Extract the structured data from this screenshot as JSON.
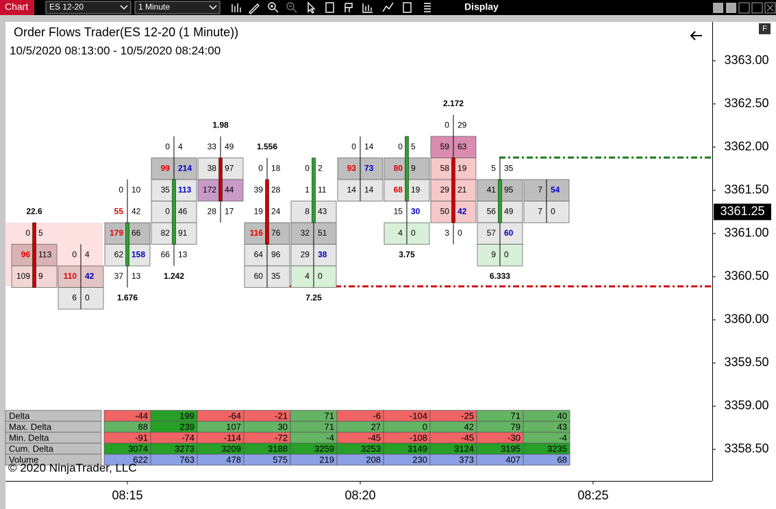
{
  "toolbar": {
    "tab": "Chart",
    "instrument": "ES 12-20",
    "interval": "1 Minute",
    "menu": "Display"
  },
  "chart_data": {
    "type": "footprint",
    "title": "Order Flows Trader(ES 12-20 (1 Minute))",
    "subtitle": "10/5/2020 08:13:00 - 10/5/2020 08:24:00",
    "copyright": "© 2020 NinjaTrader, LLC",
    "ylim": [
      3358.135,
      3363.45
    ],
    "yticks": [
      {
        "value": 3358.5,
        "label": "3358.50"
      },
      {
        "value": 3359,
        "label": "3359.00"
      },
      {
        "value": 3359.5,
        "label": "3359.50"
      },
      {
        "value": 3360,
        "label": "3360.00"
      },
      {
        "value": 3360.5,
        "label": "3360.50"
      },
      {
        "value": 3361,
        "label": "3361.00"
      },
      {
        "value": 3361.5,
        "label": "3361.50"
      },
      {
        "value": 3362,
        "label": "3362.00"
      },
      {
        "value": 3362.5,
        "label": "3362.50"
      },
      {
        "value": 3363,
        "label": "3363.00"
      }
    ],
    "current_price": {
      "value": 3361.25,
      "label": "3361.25"
    },
    "xlim": [
      -0.618,
      14.56
    ],
    "xticks": [
      {
        "value": 2,
        "label": "08:15"
      },
      {
        "value": 7,
        "label": "08:20"
      },
      {
        "value": 12,
        "label": "08:25"
      }
    ],
    "bars": [
      {
        "label": 22.6,
        "label_pos": "above",
        "open": 3361.0,
        "close": 3360.5,
        "body_color": "#cc0000",
        "cells": [
          {
            "p": 3361.0,
            "bid": 0,
            "ask": 5,
            "fill": null
          },
          {
            "p": 3360.75,
            "bid": 96,
            "ask": 113,
            "fill": "#d9b3b3",
            "bid_color": "#e00000"
          },
          {
            "p": 3360.5,
            "bid": 109,
            "ask": 9,
            "fill": "#f2d6d6"
          }
        ]
      },
      {
        "cells": [
          {
            "p": 3360.75,
            "bid": 0,
            "ask": 4,
            "fill": null
          },
          {
            "p": 3360.5,
            "bid": 110,
            "ask": 42,
            "fill": "#e2c4c4",
            "bid_color": "#e00000",
            "ask_color": "#0000c0"
          },
          {
            "p": 3360.25,
            "bid": 6,
            "ask": 0,
            "fill": "#e6e6e6"
          }
        ]
      },
      {
        "label": 1.676,
        "label_pos": "below",
        "open": 3360.75,
        "close": 3361.0,
        "body_color": "#2ea02e",
        "cells": [
          {
            "p": 3361.5,
            "bid": 0,
            "ask": 10,
            "fill": null
          },
          {
            "p": 3361.25,
            "bid": 55,
            "ask": 42,
            "fill": null,
            "bid_color": "#e00000"
          },
          {
            "p": 3361.0,
            "bid": 179,
            "ask": 66,
            "fill": "#bebebe",
            "bid_color": "#e00000"
          },
          {
            "p": 3360.75,
            "bid": 62,
            "ask": 158,
            "fill": "#e6e6e6",
            "ask_color": "#0000c0"
          },
          {
            "p": 3360.5,
            "bid": 37,
            "ask": 13,
            "fill": null
          }
        ]
      },
      {
        "label": 1.242,
        "label_pos": "below",
        "open": 3361.0,
        "close": 3361.5,
        "body_color": "#2ea02e",
        "cells": [
          {
            "p": 3362.0,
            "bid": 0,
            "ask": 4,
            "fill": null
          },
          {
            "p": 3361.75,
            "bid": 99,
            "ask": 214,
            "fill": "#bebebe",
            "bid_color": "#e00000",
            "ask_color": "#0000c0"
          },
          {
            "p": 3361.5,
            "bid": 35,
            "ask": 113,
            "fill": "#e6e6e6",
            "ask_color": "#0000c0"
          },
          {
            "p": 3361.25,
            "bid": 0,
            "ask": 46,
            "fill": "#e6e6e6"
          },
          {
            "p": 3361.0,
            "bid": 82,
            "ask": 91,
            "fill": "#e6e6e6"
          },
          {
            "p": 3360.75,
            "bid": 66,
            "ask": 13,
            "fill": null
          }
        ]
      },
      {
        "label": 1.98,
        "label_pos": "above",
        "open": 3361.75,
        "close": 3361.5,
        "body_color": "#cc0000",
        "cells": [
          {
            "p": 3362.0,
            "bid": 33,
            "ask": 49,
            "fill": null
          },
          {
            "p": 3361.75,
            "bid": 38,
            "ask": 97,
            "fill": "#e6e6e6"
          },
          {
            "p": 3361.5,
            "bid": 172,
            "ask": 44,
            "fill": "#c89ac8"
          },
          {
            "p": 3361.25,
            "bid": 28,
            "ask": 17,
            "fill": null
          }
        ]
      },
      {
        "label": 1.556,
        "label_pos": "above",
        "open": 3361.5,
        "close": 3361.0,
        "body_color": "#cc0000",
        "cells": [
          {
            "p": 3361.75,
            "bid": 0,
            "ask": 18,
            "fill": null
          },
          {
            "p": 3361.5,
            "bid": 39,
            "ask": 28,
            "fill": null
          },
          {
            "p": 3361.25,
            "bid": 19,
            "ask": 24,
            "fill": null
          },
          {
            "p": 3361.0,
            "bid": 116,
            "ask": 76,
            "fill": "#bebebe",
            "bid_color": "#e00000"
          },
          {
            "p": 3360.75,
            "bid": 64,
            "ask": 96,
            "fill": "#e6e6e6"
          },
          {
            "p": 3360.5,
            "bid": 60,
            "ask": 35,
            "fill": "#e6e6e6"
          }
        ]
      },
      {
        "label": 7.25,
        "label_pos": "below",
        "open": 3361.25,
        "close": 3361.75,
        "body_color": "#2ea02e",
        "cells": [
          {
            "p": 3361.75,
            "bid": 0,
            "ask": 2,
            "fill": null
          },
          {
            "p": 3361.5,
            "bid": 1,
            "ask": 11,
            "fill": null
          },
          {
            "p": 3361.25,
            "bid": 8,
            "ask": 43,
            "fill": "#e6e6e6"
          },
          {
            "p": 3361.0,
            "bid": 32,
            "ask": 51,
            "fill": "#bebebe"
          },
          {
            "p": 3360.75,
            "bid": 29,
            "ask": 38,
            "fill": "#e6e6e6",
            "ask_color": "#0000c0"
          },
          {
            "p": 3360.5,
            "bid": 4,
            "ask": 0,
            "fill": "#d8f0d8"
          }
        ]
      },
      {
        "cells": [
          {
            "p": 3362.0,
            "bid": 0,
            "ask": 14,
            "fill": null
          },
          {
            "p": 3361.75,
            "bid": 93,
            "ask": 73,
            "fill": "#bebebe",
            "bid_color": "#e00000",
            "ask_color": "#0000c0"
          },
          {
            "p": 3361.5,
            "bid": 14,
            "ask": 14,
            "fill": "#e6e6e6"
          }
        ]
      },
      {
        "label": 3.75,
        "label_pos": "below",
        "open": 3361.5,
        "close": 3362.0,
        "body_color": "#2ea02e",
        "cells": [
          {
            "p": 3362.0,
            "bid": 0,
            "ask": 5,
            "fill": null
          },
          {
            "p": 3361.75,
            "bid": 80,
            "ask": 9,
            "fill": "#bebebe",
            "bid_color": "#e00000"
          },
          {
            "p": 3361.5,
            "bid": 68,
            "ask": 19,
            "fill": "#e6e6e6",
            "bid_color": "#e00000"
          },
          {
            "p": 3361.25,
            "bid": 15,
            "ask": 30,
            "fill": null,
            "ask_color": "#0000c0"
          },
          {
            "p": 3361.0,
            "bid": 4,
            "ask": 0,
            "fill": "#d8f0d8"
          }
        ]
      },
      {
        "label": 2.172,
        "label_pos": "above",
        "open": 3361.75,
        "close": 3361.25,
        "body_color": "#cc0000",
        "cells": [
          {
            "p": 3362.25,
            "bid": 0,
            "ask": 29,
            "fill": null
          },
          {
            "p": 3362.0,
            "bid": 59,
            "ask": 63,
            "fill": "#d98cb0"
          },
          {
            "p": 3361.75,
            "bid": 58,
            "ask": 19,
            "fill": "#f7c8c8"
          },
          {
            "p": 3361.5,
            "bid": 29,
            "ask": 21,
            "fill": "#f7c8c8"
          },
          {
            "p": 3361.25,
            "bid": 50,
            "ask": 42,
            "fill": "#f7c8c8",
            "ask_color": "#0000c0"
          },
          {
            "p": 3361.0,
            "bid": 3,
            "ask": 0,
            "fill": null
          }
        ]
      },
      {
        "label": 6.333,
        "label_pos": "below",
        "open": 3361.25,
        "close": 3361.5,
        "body_color": "#2ea02e",
        "cells": [
          {
            "p": 3361.75,
            "bid": 5,
            "ask": 35,
            "fill": null
          },
          {
            "p": 3361.5,
            "bid": 41,
            "ask": 95,
            "fill": "#bebebe"
          },
          {
            "p": 3361.25,
            "bid": 56,
            "ask": 49,
            "fill": "#e6e6e6"
          },
          {
            "p": 3361.0,
            "bid": 57,
            "ask": 60,
            "fill": "#e6e6e6",
            "ask_color": "#0000c0"
          },
          {
            "p": 3360.75,
            "bid": 9,
            "ask": 0,
            "fill": "#d8f0d8"
          }
        ]
      },
      {
        "cells": [
          {
            "p": 3361.5,
            "bid": 7,
            "ask": 54,
            "fill": "#bebebe",
            "ask_color": "#0000c0"
          },
          {
            "p": 3361.25,
            "bid": 7,
            "ask": 0,
            "fill": "#e6e6e6"
          }
        ]
      }
    ],
    "stats": [
      {
        "name": "Delta",
        "values": [
          null,
          null,
          -44,
          199,
          -64,
          -21,
          71,
          -6,
          -104,
          -25,
          71,
          40
        ],
        "colors": [
          null,
          null,
          "#f06464",
          "#28a028",
          "#f06464",
          "#f06464",
          "#64b464",
          "#f06464",
          "#f06464",
          "#f06464",
          "#64b464",
          "#64b464"
        ]
      },
      {
        "name": "Max. Delta",
        "values": [
          null,
          null,
          88,
          239,
          107,
          30,
          71,
          27,
          0,
          42,
          79,
          43
        ],
        "colors": [
          null,
          null,
          "#64b464",
          "#28a028",
          "#64b464",
          "#64b464",
          "#64b464",
          "#64b464",
          "#64b464",
          "#64b464",
          "#64b464",
          "#64b464"
        ]
      },
      {
        "name": "Min. Delta",
        "values": [
          null,
          null,
          -91,
          -74,
          -114,
          -72,
          -4,
          -45,
          -108,
          -45,
          -30,
          -4
        ],
        "colors": [
          null,
          null,
          "#f06464",
          "#f06464",
          "#f06464",
          "#f06464",
          "#64b464",
          "#f06464",
          "#f06464",
          "#f06464",
          "#f06464",
          "#64b464"
        ]
      },
      {
        "name": "Cum. Delta",
        "values": [
          null,
          null,
          3074,
          3273,
          3209,
          3188,
          3259,
          3253,
          3149,
          3124,
          3195,
          3235
        ],
        "colors": [
          null,
          null,
          "#28a028",
          "#28a028",
          "#28a028",
          "#28a028",
          "#28a028",
          "#28a028",
          "#28a028",
          "#28a028",
          "#28a028",
          "#28a028"
        ]
      },
      {
        "name": "Volume",
        "values": [
          null,
          null,
          622,
          763,
          478,
          575,
          219,
          208,
          230,
          373,
          407,
          68
        ],
        "colors": [
          null,
          null,
          "#8ca0e6",
          "#8ca0e6",
          "#8ca0e6",
          "#8ca0e6",
          "#8ca0e6",
          "#8ca0e6",
          "#8ca0e6",
          "#8ca0e6",
          "#8ca0e6",
          "#8ca0e6"
        ]
      }
    ]
  }
}
